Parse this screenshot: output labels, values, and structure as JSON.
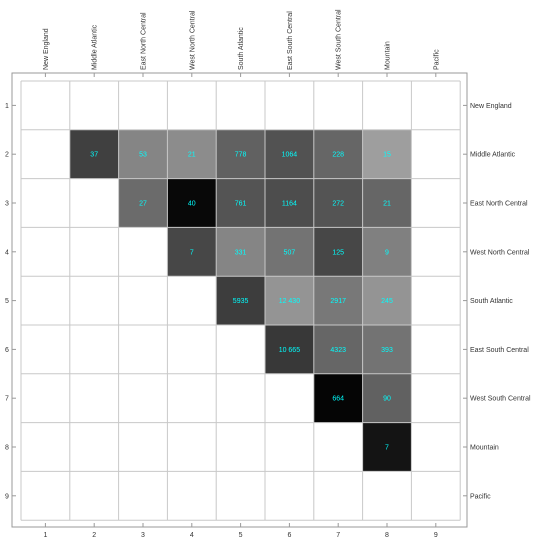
{
  "chart_data": {
    "type": "heatmap",
    "title": "",
    "top_labels": [
      "New England",
      "Middle Atlantic",
      "East North Central",
      "West North Central",
      "South Atlantic",
      "East South Central",
      "West South Central",
      "Mountain",
      "Pacific"
    ],
    "right_labels": [
      "New England",
      "Middle Atlantic",
      "East North Central",
      "West North Central",
      "South Atlantic",
      "East South Central",
      "West South Central",
      "Mountain",
      "Pacific"
    ],
    "left_ticks": [
      "1",
      "2",
      "3",
      "4",
      "5",
      "6",
      "7",
      "8",
      "9"
    ],
    "bottom_ticks": [
      "1",
      "2",
      "3",
      "4",
      "5",
      "6",
      "7",
      "8",
      "9"
    ],
    "text_color": "#00ffff",
    "grid": true,
    "cells": [
      {
        "row": 2,
        "col": 2,
        "label": "37",
        "shade": 0.25
      },
      {
        "row": 2,
        "col": 3,
        "label": "53",
        "shade": 0.52
      },
      {
        "row": 2,
        "col": 4,
        "label": "21",
        "shade": 0.55
      },
      {
        "row": 2,
        "col": 5,
        "label": "778",
        "shade": 0.38
      },
      {
        "row": 2,
        "col": 6,
        "label": "1064",
        "shade": 0.32
      },
      {
        "row": 2,
        "col": 7,
        "label": "228",
        "shade": 0.4
      },
      {
        "row": 2,
        "col": 8,
        "label": "15",
        "shade": 0.62
      },
      {
        "row": 3,
        "col": 3,
        "label": "27",
        "shade": 0.42
      },
      {
        "row": 3,
        "col": 4,
        "label": "40",
        "shade": 0.03
      },
      {
        "row": 3,
        "col": 5,
        "label": "761",
        "shade": 0.33
      },
      {
        "row": 3,
        "col": 6,
        "label": "1164",
        "shade": 0.3
      },
      {
        "row": 3,
        "col": 7,
        "label": "272",
        "shade": 0.33
      },
      {
        "row": 3,
        "col": 8,
        "label": "21",
        "shade": 0.4
      },
      {
        "row": 4,
        "col": 4,
        "label": "7",
        "shade": 0.28
      },
      {
        "row": 4,
        "col": 5,
        "label": "331",
        "shade": 0.52
      },
      {
        "row": 4,
        "col": 6,
        "label": "507",
        "shade": 0.45
      },
      {
        "row": 4,
        "col": 7,
        "label": "125",
        "shade": 0.28
      },
      {
        "row": 4,
        "col": 8,
        "label": "9",
        "shade": 0.5
      },
      {
        "row": 5,
        "col": 5,
        "label": "5935",
        "shade": 0.24
      },
      {
        "row": 5,
        "col": 6,
        "label": "12 430",
        "shade": 0.58
      },
      {
        "row": 5,
        "col": 7,
        "label": "2917",
        "shade": 0.47
      },
      {
        "row": 5,
        "col": 8,
        "label": "245",
        "shade": 0.58
      },
      {
        "row": 6,
        "col": 6,
        "label": "10 665",
        "shade": 0.22
      },
      {
        "row": 6,
        "col": 7,
        "label": "4323",
        "shade": 0.4
      },
      {
        "row": 6,
        "col": 8,
        "label": "393",
        "shade": 0.45
      },
      {
        "row": 7,
        "col": 7,
        "label": "664",
        "shade": 0.02
      },
      {
        "row": 7,
        "col": 8,
        "label": "90",
        "shade": 0.38
      },
      {
        "row": 8,
        "col": 8,
        "label": "7",
        "shade": 0.08
      }
    ]
  }
}
